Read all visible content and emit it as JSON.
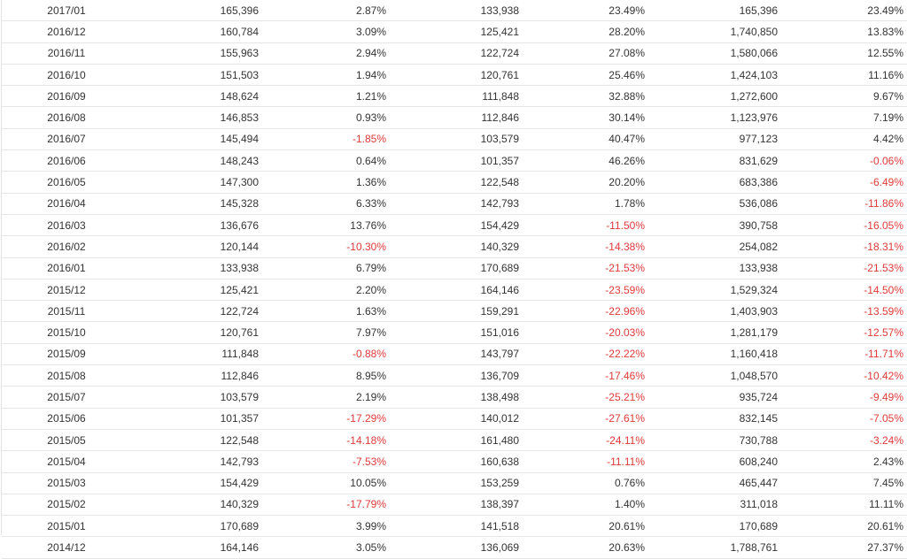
{
  "table": {
    "rows": [
      [
        "2017/01",
        "165,396",
        "2.87%",
        "133,938",
        "23.49%",
        "165,396",
        "23.49%"
      ],
      [
        "2016/12",
        "160,784",
        "3.09%",
        "125,421",
        "28.20%",
        "1,740,850",
        "13.83%"
      ],
      [
        "2016/11",
        "155,963",
        "2.94%",
        "122,724",
        "27.08%",
        "1,580,066",
        "12.55%"
      ],
      [
        "2016/10",
        "151,503",
        "1.94%",
        "120,761",
        "25.46%",
        "1,424,103",
        "11.16%"
      ],
      [
        "2016/09",
        "148,624",
        "1.21%",
        "111,848",
        "32.88%",
        "1,272,600",
        "9.67%"
      ],
      [
        "2016/08",
        "146,853",
        "0.93%",
        "112,846",
        "30.14%",
        "1,123,976",
        "7.19%"
      ],
      [
        "2016/07",
        "145,494",
        "-1.85%",
        "103,579",
        "40.47%",
        "977,123",
        "4.42%"
      ],
      [
        "2016/06",
        "148,243",
        "0.64%",
        "101,357",
        "46.26%",
        "831,629",
        "-0.06%"
      ],
      [
        "2016/05",
        "147,300",
        "1.36%",
        "122,548",
        "20.20%",
        "683,386",
        "-6.49%"
      ],
      [
        "2016/04",
        "145,328",
        "6.33%",
        "142,793",
        "1.78%",
        "536,086",
        "-11.86%"
      ],
      [
        "2016/03",
        "136,676",
        "13.76%",
        "154,429",
        "-11.50%",
        "390,758",
        "-16.05%"
      ],
      [
        "2016/02",
        "120,144",
        "-10.30%",
        "140,329",
        "-14.38%",
        "254,082",
        "-18.31%"
      ],
      [
        "2016/01",
        "133,938",
        "6.79%",
        "170,689",
        "-21.53%",
        "133,938",
        "-21.53%"
      ],
      [
        "2015/12",
        "125,421",
        "2.20%",
        "164,146",
        "-23.59%",
        "1,529,324",
        "-14.50%"
      ],
      [
        "2015/11",
        "122,724",
        "1.63%",
        "159,291",
        "-22.96%",
        "1,403,903",
        "-13.59%"
      ],
      [
        "2015/10",
        "120,761",
        "7.97%",
        "151,016",
        "-20.03%",
        "1,281,179",
        "-12.57%"
      ],
      [
        "2015/09",
        "111,848",
        "-0.88%",
        "143,797",
        "-22.22%",
        "1,160,418",
        "-11.71%"
      ],
      [
        "2015/08",
        "112,846",
        "8.95%",
        "136,709",
        "-17.46%",
        "1,048,570",
        "-10.42%"
      ],
      [
        "2015/07",
        "103,579",
        "2.19%",
        "138,498",
        "-25.21%",
        "935,724",
        "-9.49%"
      ],
      [
        "2015/06",
        "101,357",
        "-17.29%",
        "140,012",
        "-27.61%",
        "832,145",
        "-7.05%"
      ],
      [
        "2015/05",
        "122,548",
        "-14.18%",
        "161,480",
        "-24.11%",
        "730,788",
        "-3.24%"
      ],
      [
        "2015/04",
        "142,793",
        "-7.53%",
        "160,638",
        "-11.11%",
        "608,240",
        "2.43%"
      ],
      [
        "2015/03",
        "154,429",
        "10.05%",
        "153,259",
        "0.76%",
        "465,447",
        "7.45%"
      ],
      [
        "2015/02",
        "140,329",
        "-17.79%",
        "138,397",
        "1.40%",
        "311,018",
        "11.11%"
      ],
      [
        "2015/01",
        "170,689",
        "3.99%",
        "141,518",
        "20.61%",
        "170,689",
        "20.61%"
      ],
      [
        "2014/12",
        "164,146",
        "3.05%",
        "136,069",
        "20.63%",
        "1,788,761",
        "27.37%"
      ]
    ],
    "negative_color": "#e03a3a",
    "text_color": "#333333"
  }
}
